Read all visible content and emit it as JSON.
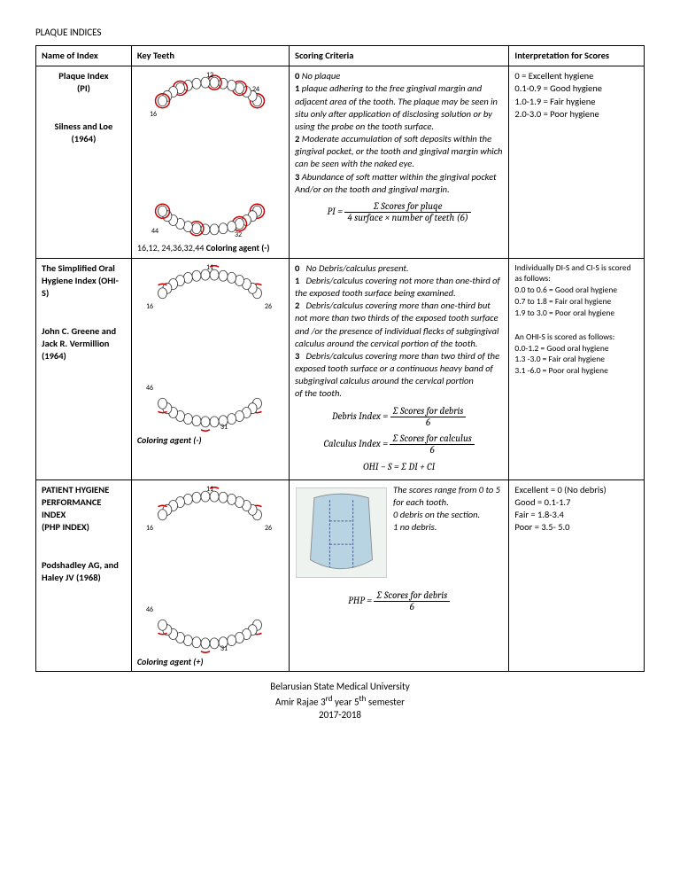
{
  "title": "PLAQUE INDICES",
  "headers": {
    "name": "Name of Index",
    "teeth": "Key Teeth",
    "score": "Scoring Criteria",
    "interp": "Interpretation for Scores"
  },
  "rows": [
    {
      "name_lines": [
        "Plaque Index",
        "(PI)",
        "",
        "",
        "Silness and Loe",
        "(1964)"
      ],
      "teeth_caption_prefix": "16,12, 24,36,32,44 ",
      "teeth_caption_bold": "Coloring agent (-)",
      "score_items": [
        {
          "n": "0",
          "t": "No plaque",
          "italic": true
        },
        {
          "n": "1",
          "t": "plaque adhering to the free gingival margin and adjacent area of the tooth. The plaque may be seen in situ only after application of disclosing solution or by using the probe on the tooth surface.",
          "italic": true
        },
        {
          "n": "2",
          "t": "Moderate accumulation of soft deposits within the",
          "italic": true
        },
        {
          "n": "",
          "t": "gingival pocket, or the tooth and gingival margin which can be seen with the naked eye.",
          "italic": true
        },
        {
          "n": "3",
          "t": "Abundance of soft matter within the gingival pocket",
          "italic": true
        },
        {
          "n": "",
          "t": "And/or on the tooth and gingival margin.",
          "italic": true
        }
      ],
      "formula_lhs": "PI =",
      "formula_num": "∑ Scores for pluqe",
      "formula_den": "4 surface × number of teeth (6)",
      "interp_lines": [
        "0 = Excellent hygiene",
        "0.1-0.9 = Good hygiene",
        "1.0-1.9 = Fair hygiene",
        "2.0-3.0 = Poor hygiene"
      ]
    },
    {
      "name_lines": [
        "The Simplified Oral Hygiene Index (OHI-S)",
        "",
        "",
        "John C. Greene and Jack R. Vermillion",
        " (1964)"
      ],
      "teeth_caption_prefix": "",
      "teeth_caption_bold": "Coloring agent (-)",
      "score_items": [
        {
          "n": "0",
          "t": "No Debris/calculus present.",
          "italic": true,
          "pad": true
        },
        {
          "n": "1",
          "t": "Debris/calculus covering not more than one-third of the exposed tooth surface being examined.",
          "italic": true,
          "pad": true
        },
        {
          "n": "2",
          "t": "Debris/calculus covering more than one-third but not more than two thirds of the exposed tooth surface",
          "italic": true,
          "pad": true
        },
        {
          "n": "",
          "t": "and /or the presence of individual flecks of subgingival",
          "italic": true
        },
        {
          "n": "",
          "t": "calculus around the cervical portion of the tooth.",
          "italic": true
        },
        {
          "n": "3",
          "t": "Debris/calculus covering more than two third of the exposed tooth surface or a continuous heavy band of subgingival calculus around the cervical portion",
          "italic": true,
          "pad": true
        },
        {
          "n": "",
          "t": "of the tooth.",
          "italic": true
        }
      ],
      "formulas": [
        {
          "lhs": "Debris Index =",
          "num": "∑ Scores for debris",
          "den": "6"
        },
        {
          "lhs": "Calculus Index =",
          "num": "∑ Scores for calculus",
          "den": "6"
        },
        {
          "lhs": "OHI − S = ∑ DI + CI"
        }
      ],
      "interp_sections": [
        {
          "head": "Individually DI-S and CI-S is scored as follows:",
          "lines": [
            "0.0 to 0.6 = Good oral hygiene",
            "0.7 to 1.8 = Fair oral hygiene",
            "1.9 to 3.0 = Poor oral hygiene"
          ]
        },
        {
          "head": "An OHI-S is scored as follows:",
          "lines": [
            "0.0-1.2 = Good oral hygiene",
            "1.3 -3.0 = Fair oral hygiene",
            "3.1 -6.0 = Poor oral hygiene"
          ]
        }
      ]
    },
    {
      "name_lines": [
        "PATIENT HYGIENE PERFORMANCE INDEX",
        "(PHP INDEX)",
        "",
        "",
        "Podshadley AG, and Haley JV (1968)"
      ],
      "teeth_caption_prefix": "",
      "teeth_caption_bold": "Coloring agent (+)",
      "score_note": "The scores range from 0 to 5 for each tooth.\n0 debris on the section.\n1 no debris.",
      "formula_lhs": "PHP =",
      "formula_num": "∑ Scores for debris",
      "formula_den": "6",
      "interp_lines": [
        "Excellent = 0  (No debris)",
        "Good = 0.1-1.7",
        "Fair    = 1.8-3.4",
        "Poor  = 3.5- 5.0"
      ]
    }
  ],
  "footer": {
    "l1": "Belarusian State Medical University",
    "l2_pre": "Amir Rajae 3",
    "l2_sup1": "rd",
    "l2_mid": " year 5",
    "l2_sup2": "th",
    "l2_post": " semester",
    "l3": "2017-2018"
  },
  "diagram": {
    "arch_stroke": "#333333",
    "circle_stroke": "#cc0000",
    "mark_stroke": "#cc0000",
    "tooth_fill": "#ffffff",
    "labels_upper": [
      "12",
      "24",
      "16"
    ],
    "labels_lower": [
      "44",
      "32"
    ],
    "ohis_labels": [
      "11",
      "26",
      "16",
      "46",
      "31"
    ],
    "tooth_section_fill": "#b8d4e3",
    "tooth_section_line": "#4a5a8a"
  }
}
